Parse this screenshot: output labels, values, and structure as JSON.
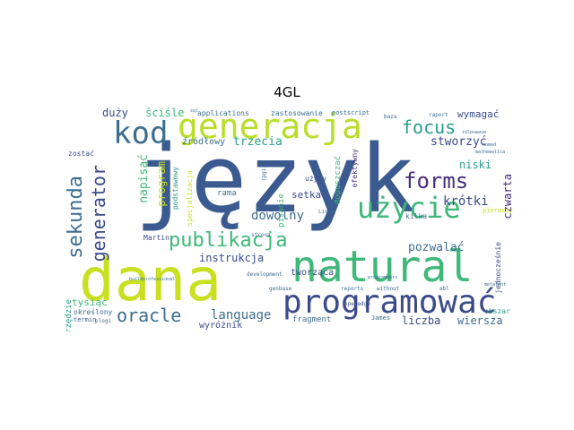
{
  "title": "4GL",
  "colors": {
    "dark_blue": "#3b5a8f",
    "navy": "#3b4a8a",
    "purple": "#472d7b",
    "teal": "#2a9e8a",
    "green": "#3fb87a",
    "lime": "#b8de29",
    "yellow_green": "#c8e020",
    "slate": "#3e6e8e"
  },
  "words": {
    "jezyk": "język",
    "dana": "dana",
    "natural": "natural",
    "programowac": "programować",
    "kod": "kod",
    "generacja": "generacja",
    "uzycie": "użycie",
    "forms": "forms",
    "focus": "focus",
    "publikacja": "publikacja",
    "generator": "generator",
    "sekunda": "sekunda",
    "oracle": "oracle",
    "dowolny": "dowolny",
    "language": "language",
    "krotki": "krótki",
    "czwarta": "czwarta",
    "trzecia": "trzecia",
    "stworzyc": "stworzyć",
    "wymagac": "wymagać",
    "niski": "niski",
    "pozwalac": "pozwalać",
    "liczba": "liczba",
    "wiersza": "wiersza",
    "duzy": "duży",
    "scisle": "ściśle",
    "zrodlowy": "źródłowy",
    "napisac": "napisać",
    "instrukcja": "instrukcja",
    "setka": "setka",
    "program": "program",
    "rama": "rama",
    "tworzaca": "tworząca",
    "wyroznik": "wyróżnik",
    "tysiac": "tysiąc",
    "fragment": "fragment",
    "okreslony": "określony",
    "termin": "termin",
    "zastosowanie": "zastosowanie",
    "applications": "applications",
    "postscript": "postscript",
    "uzyty": "użyty",
    "pisanie": "pisanie",
    "kilka": "kilka",
    "martin": "Martin",
    "zostac": "zostać",
    "narzedzie": "narzędzie",
    "podstawowy": "podstawowy",
    "specjalizacja": "specjalizacja",
    "dopuszczac": "dopuszczać",
    "efektywny": "efektywny",
    "jednoczesnie": "jednocześnie",
    "james": "James",
    "development": "development",
    "opendge": "openedge",
    "rpgii": "rpgii",
    "pierwszy": "pierwszy",
    "obszar": "obszar",
    "raport": "raport",
    "strona": "strona",
    "reports": "reports",
    "without": "without",
    "programmers": "programmers",
    "buildprofessional": "buildprofessional",
    "idlpvwave": "idlpvwave",
    "metafont": "metafont",
    "baza": "baza",
    "linca": "Linca",
    "genbase": "genbase",
    "plogi": "plogi",
    "abl": "abl",
    "sql": "sql",
    "nomad": "nomad",
    "mathematica": "mathematica"
  }
}
